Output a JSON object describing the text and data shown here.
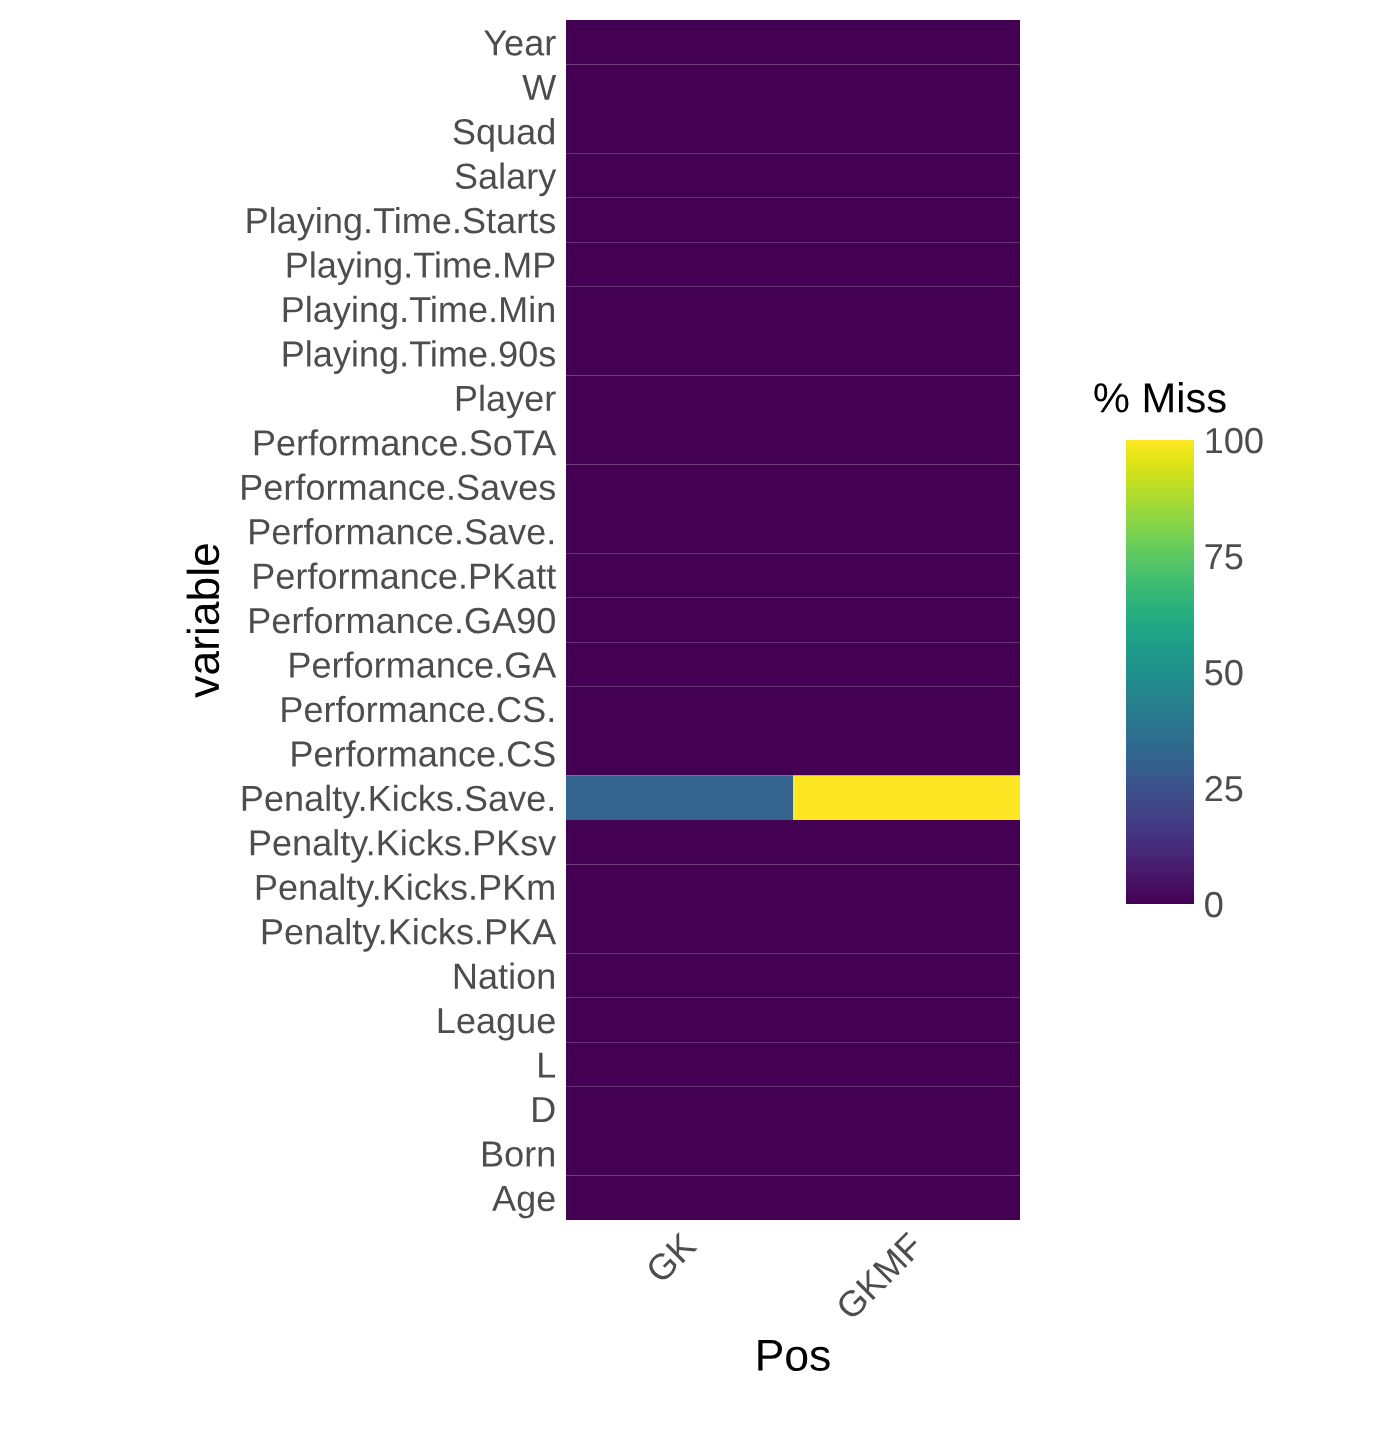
{
  "chart_data": {
    "type": "heatmap",
    "xlabel": "Pos",
    "ylabel": "variable",
    "clabel": "% Miss",
    "categories": [
      "GK",
      "GKMF"
    ],
    "y_categories": [
      "Year",
      "W",
      "Squad",
      "Salary",
      "Playing.Time.Starts",
      "Playing.Time.MP",
      "Playing.Time.Min",
      "Playing.Time.90s",
      "Player",
      "Performance.SoTA",
      "Performance.Saves",
      "Performance.Save.",
      "Performance.PKatt",
      "Performance.GA90",
      "Performance.GA",
      "Performance.CS.",
      "Performance.CS",
      "Penalty.Kicks.Save.",
      "Penalty.Kicks.PKsv",
      "Penalty.Kicks.PKm",
      "Penalty.Kicks.PKA",
      "Nation",
      "League",
      "L",
      "D",
      "Born",
      "Age"
    ],
    "cells": [
      [
        0,
        0
      ],
      [
        0,
        0
      ],
      [
        0,
        0
      ],
      [
        0,
        0
      ],
      [
        0,
        0
      ],
      [
        0,
        0
      ],
      [
        0,
        0
      ],
      [
        0,
        0
      ],
      [
        0,
        0
      ],
      [
        0,
        0
      ],
      [
        0,
        0
      ],
      [
        0,
        0
      ],
      [
        0,
        0
      ],
      [
        0,
        0
      ],
      [
        0,
        0
      ],
      [
        0,
        0
      ],
      [
        0,
        0
      ],
      [
        32,
        100
      ],
      [
        0,
        0
      ],
      [
        0,
        0
      ],
      [
        0,
        0
      ],
      [
        0,
        0
      ],
      [
        0,
        0
      ],
      [
        0,
        0
      ],
      [
        0,
        0
      ],
      [
        0,
        0
      ],
      [
        0,
        0
      ]
    ],
    "clim": [
      0,
      100
    ],
    "cticks": [
      0,
      25,
      50,
      75,
      100
    ],
    "grid": false
  }
}
